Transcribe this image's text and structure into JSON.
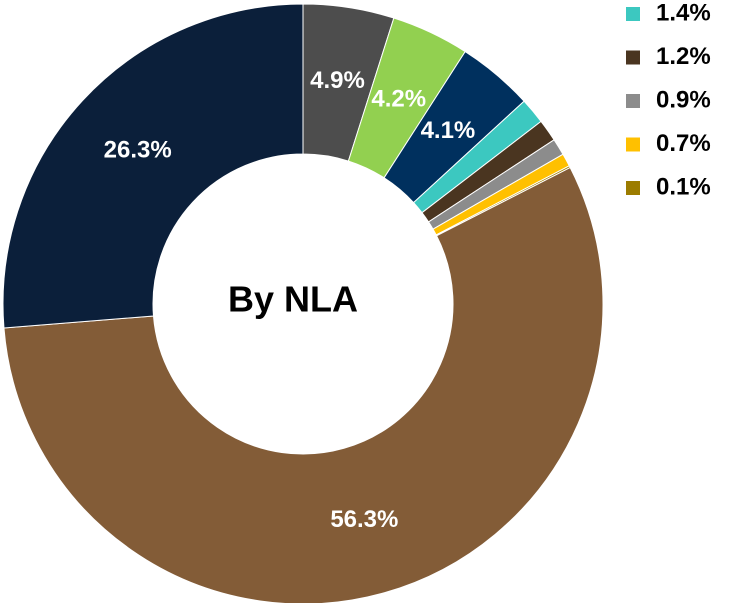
{
  "chart_data": {
    "type": "pie",
    "title": "By NLA",
    "values": [
      4.9,
      4.2,
      4.1,
      1.4,
      1.2,
      0.9,
      0.7,
      0.1,
      56.3,
      26.3
    ],
    "value_labels": [
      "4.9%",
      "4.2%",
      "4.1%",
      "1.4%",
      "1.2%",
      "0.9%",
      "0.7%",
      "0.1%",
      "56.3%",
      "26.3%"
    ],
    "colors": [
      "#4d4d4d",
      "#92d050",
      "#00305e",
      "#3cc8c0",
      "#4a3520",
      "#8c8c8c",
      "#ffc000",
      "#9c7c00",
      "#835c37",
      "#0b1f3a"
    ],
    "legend": "upper right"
  }
}
